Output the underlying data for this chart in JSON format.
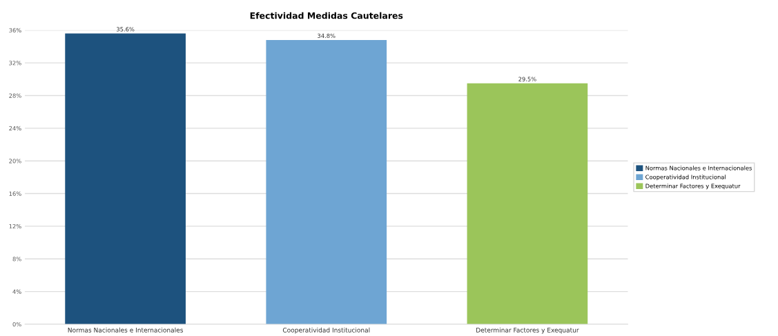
{
  "chart_data": {
    "type": "bar",
    "title": "Efectividad Medidas Cautelares",
    "categories": [
      "Normas Nacionales e Internacionales",
      "Cooperatividad Institucional",
      "Determinar Factores y Exequatur"
    ],
    "series": [
      {
        "name": "Normas Nacionales e Internacionales",
        "color": "#1d527e",
        "values": [
          35.6,
          null,
          null
        ],
        "value_labels": [
          "35.6%",
          null,
          null
        ]
      },
      {
        "name": "Cooperatividad Institucional",
        "color": "#6ea5d3",
        "values": [
          null,
          34.8,
          null
        ],
        "value_labels": [
          null,
          "34.8%",
          null
        ]
      },
      {
        "name": "Determinar Factores y Exequatur",
        "color": "#9bc55a",
        "values": [
          null,
          null,
          29.5
        ],
        "value_labels": [
          null,
          null,
          "29.5%"
        ]
      }
    ],
    "ylim": [
      0,
      36
    ],
    "yticks": [
      {
        "value": 0,
        "label": "0%"
      },
      {
        "value": 4,
        "label": "4%"
      },
      {
        "value": 8,
        "label": "8%"
      },
      {
        "value": 12,
        "label": "12%"
      },
      {
        "value": 16,
        "label": "16%"
      },
      {
        "value": 20,
        "label": "20%"
      },
      {
        "value": 24,
        "label": "24%"
      },
      {
        "value": 28,
        "label": "28%"
      },
      {
        "value": 32,
        "label": "32%"
      },
      {
        "value": 36,
        "label": "36%"
      }
    ],
    "grid": "y",
    "legend": "right"
  }
}
